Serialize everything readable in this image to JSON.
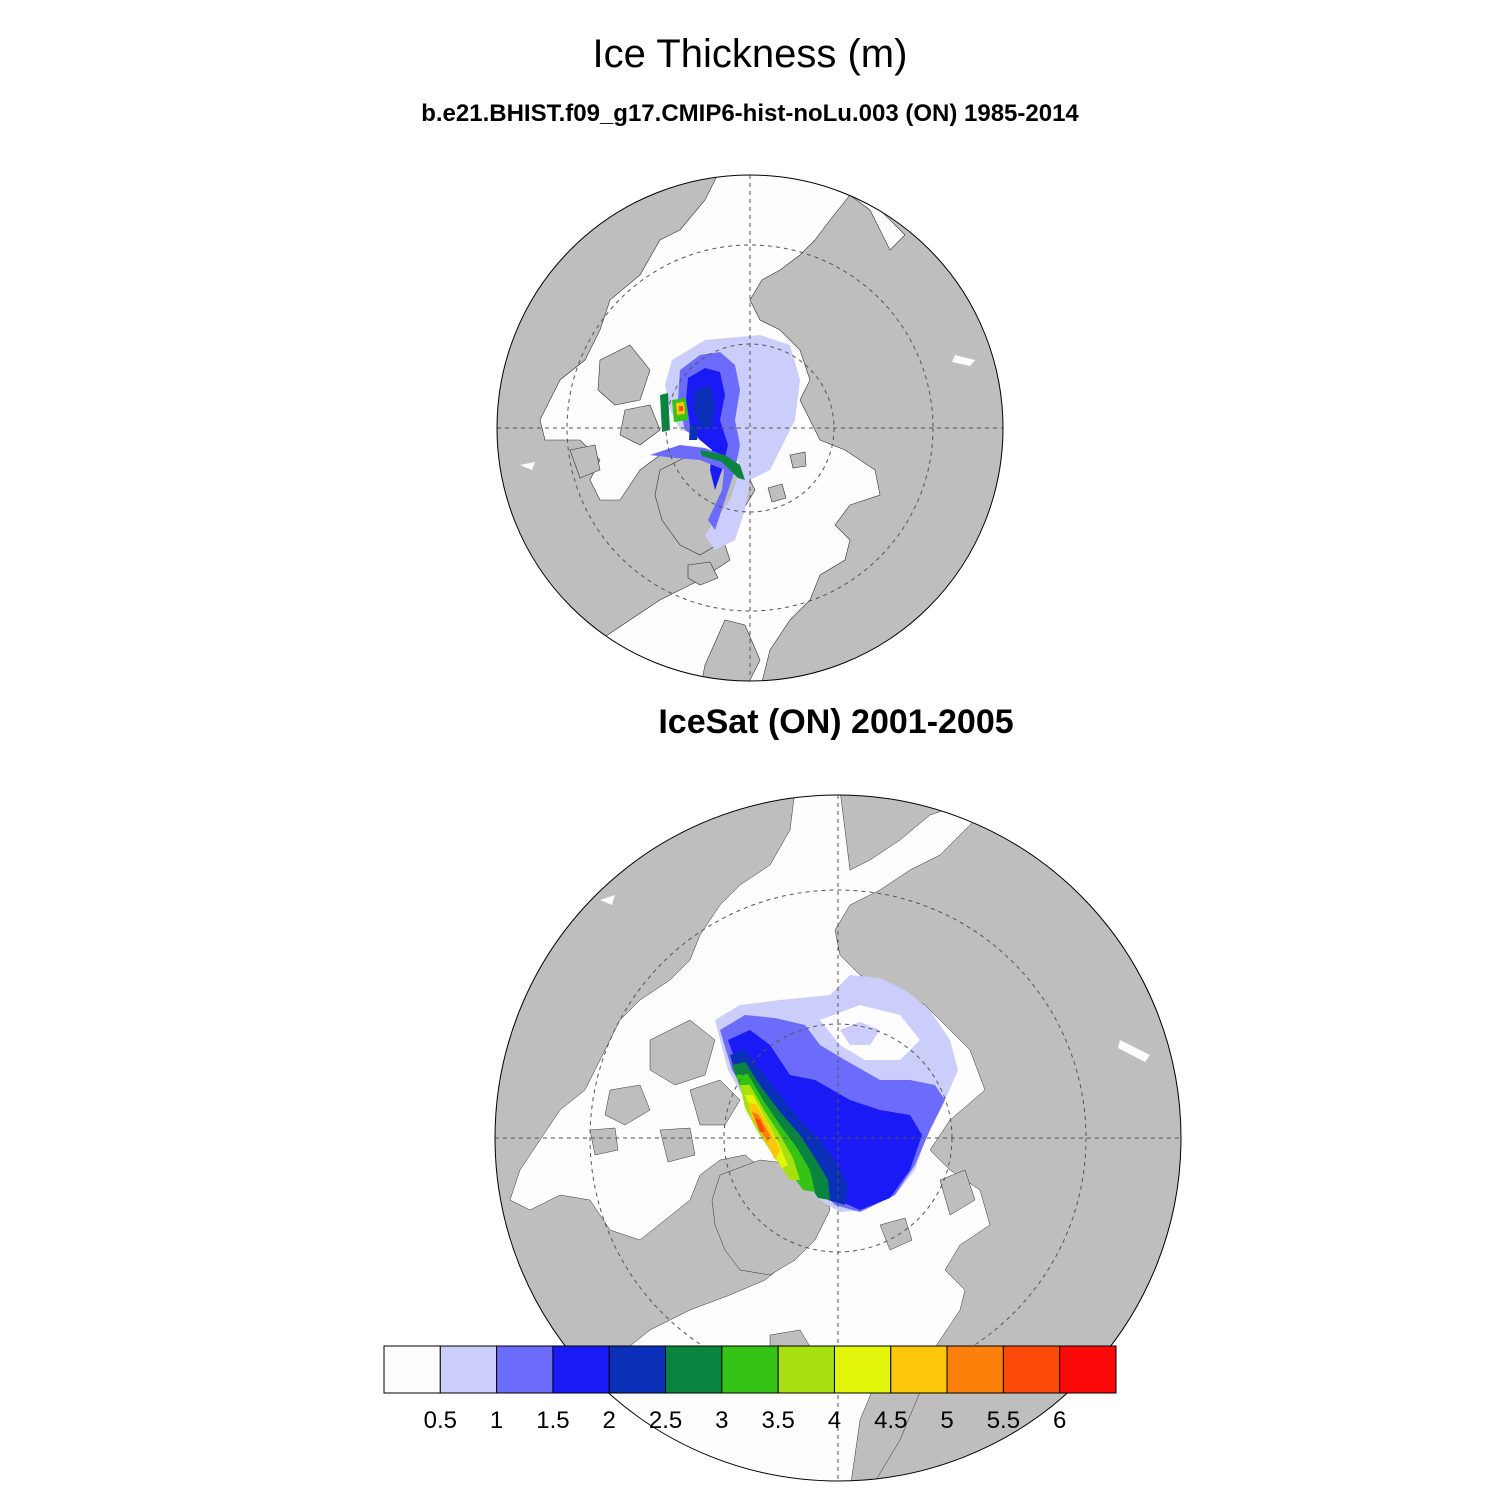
{
  "figure": {
    "title": "Ice Thickness (m)",
    "top_panel_title": "b.e21.BHIST.f09_g17.CMIP6-hist-noLu.003 (ON) 1985-2014",
    "bottom_panel_title": "IceSat (ON) 2001-2005"
  },
  "colors": {
    "land": "#bebebe",
    "ocean": "#fdfdfd",
    "grid": "#555555"
  },
  "colorbar": {
    "levels": [
      "0.5",
      "1",
      "1.5",
      "2",
      "2.5",
      "3",
      "3.5",
      "4",
      "4.5",
      "5",
      "5.5",
      "6"
    ],
    "colors": [
      "#fdfdfd",
      "#cbcdfa",
      "#6b6cfc",
      "#1a1af7",
      "#0a2fb8",
      "#0a8540",
      "#35c316",
      "#a6e00f",
      "#e2f50a",
      "#fcc60b",
      "#fc8009",
      "#fc4a0a",
      "#fc0a0a"
    ]
  }
}
